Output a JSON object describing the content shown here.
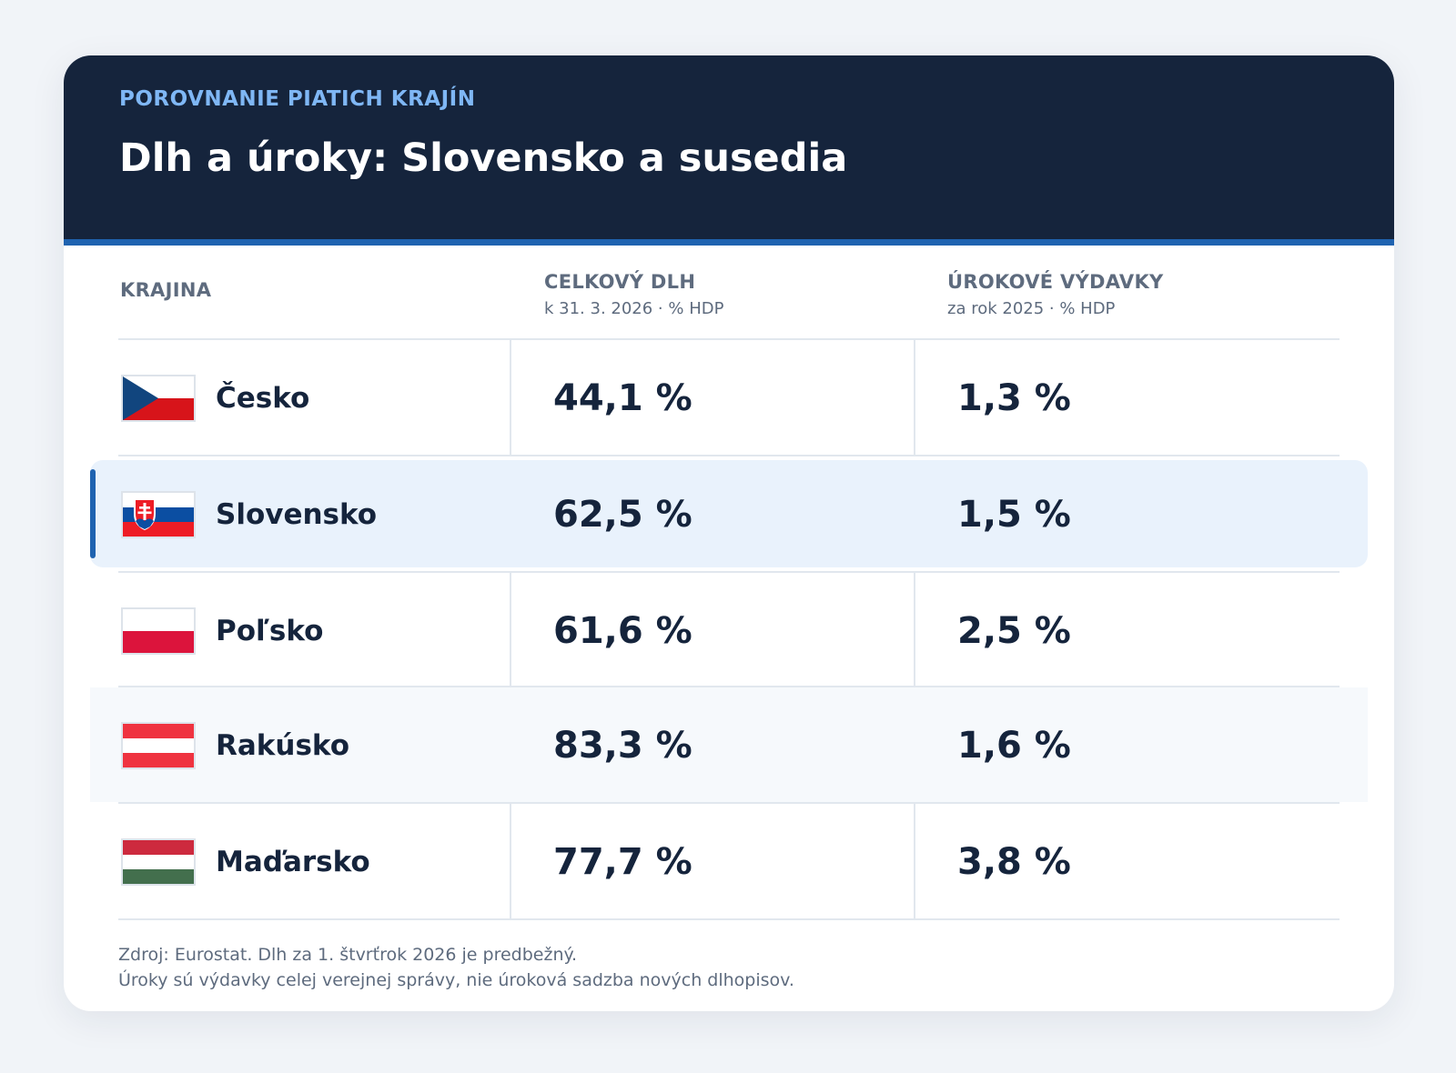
{
  "header": {
    "eyebrow": "POROVNANIE PIATICH KRAJÍN",
    "title": "Dlh a úroky: Slovensko a susedia"
  },
  "columns": {
    "country": "KRAJINA",
    "debt": {
      "label": "CELKOVÝ DLH",
      "sub": "k 31. 3. 2026 · % HDP"
    },
    "interest": {
      "label": "ÚROKOVÉ VÝDAVKY",
      "sub": "za rok 2025 · % HDP"
    }
  },
  "rows": [
    {
      "country": "Česko",
      "flag": "czech-flag-icon",
      "debt": "44,1 %",
      "interest": "1,3 %"
    },
    {
      "country": "Slovensko",
      "flag": "slovak-flag-icon",
      "debt": "62,5 %",
      "interest": "1,5 %",
      "highlighted": true
    },
    {
      "country": "Poľsko",
      "flag": "polish-flag-icon",
      "debt": "61,6 %",
      "interest": "2,5 %"
    },
    {
      "country": "Rakúsko",
      "flag": "austrian-flag-icon",
      "debt": "83,3 %",
      "interest": "1,6 %"
    },
    {
      "country": "Maďarsko",
      "flag": "hungarian-flag-icon",
      "debt": "77,7 %",
      "interest": "3,8 %"
    }
  ],
  "footer": {
    "line1": "Zdroj: Eurostat. Dlh za 1. štvrťrok 2026 je predbežný.",
    "line2": "Úroky sú výdavky celej verejnej správy, nie úroková sadzba nových dlhopisov."
  },
  "colors": {
    "header_bg": "#15243c",
    "accent": "#1f63b0",
    "eyebrow": "#7fb7f5",
    "highlight_bg": "#e9f2fc"
  }
}
